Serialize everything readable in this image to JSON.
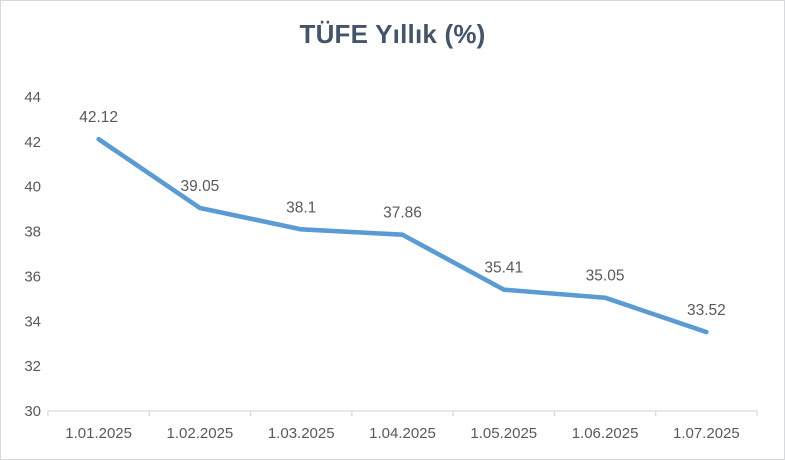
{
  "window": {
    "background_color": "#ffffff",
    "border_color": "#d6d9e0"
  },
  "chart_data": {
    "type": "line",
    "title": "TÜFE Yıllık (%)",
    "categories": [
      "1.01.2025",
      "1.02.2025",
      "1.03.2025",
      "1.04.2025",
      "1.05.2025",
      "1.06.2025",
      "1.07.2025"
    ],
    "series": [
      {
        "name": "TÜFE Yıllık (%)",
        "values": [
          42.12,
          39.05,
          38.1,
          37.86,
          35.41,
          35.05,
          33.52
        ]
      }
    ],
    "data_labels": [
      "42.12",
      "39.05",
      "38.1",
      "37.86",
      "35.41",
      "35.05",
      "33.52"
    ],
    "xlabel": "",
    "ylabel": "",
    "ylim": [
      30,
      44
    ],
    "yticks": [
      30,
      32,
      34,
      36,
      38,
      40,
      42,
      44
    ],
    "grid": false,
    "legend": "none",
    "colors": {
      "line": "#5b9bd5",
      "title": "#44546a",
      "data_label": "#595959",
      "axis_label": "#595959",
      "axis_line": "#d9d9d9"
    }
  }
}
